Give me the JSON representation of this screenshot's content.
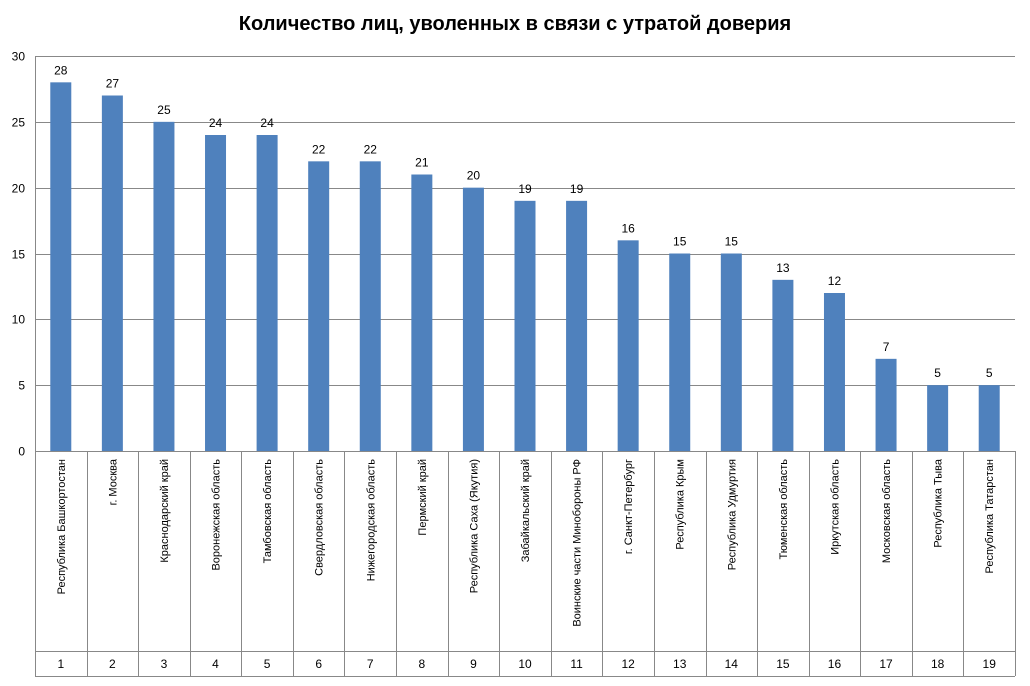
{
  "chart_data": {
    "type": "bar",
    "title": "Количество лиц, уволенных в связи с утратой доверия",
    "categories": [
      "Республика Башкортостан",
      "г. Москва",
      "Краснодарский край",
      "Воронежская область",
      "Тамбовская область",
      "Свердловская область",
      "Нижегородская область",
      "Пермский край",
      "Республика Саха (Якутия)",
      "Забайкальский край",
      "Воинские части Минобороны РФ",
      "г. Санкт-Петербург",
      "Республика Крым",
      "Республика Удмуртия",
      "Тюменская область",
      "Иркутская область",
      "Московская область",
      "Республика Тыва",
      "Республика Татарстан"
    ],
    "row_numbers": [
      "1",
      "2",
      "3",
      "4",
      "5",
      "6",
      "7",
      "8",
      "9",
      "10",
      "11",
      "12",
      "13",
      "14",
      "15",
      "16",
      "17",
      "18",
      "19"
    ],
    "values": [
      28,
      27,
      25,
      24,
      24,
      22,
      22,
      21,
      20,
      19,
      19,
      16,
      15,
      15,
      13,
      12,
      7,
      5,
      5
    ],
    "ylim": [
      0,
      30
    ],
    "yticks": [
      0,
      5,
      10,
      15,
      20,
      25,
      30
    ],
    "grid": true,
    "data_labels": true,
    "bar_color": "#4f81bd",
    "grid_color": "#888888"
  }
}
